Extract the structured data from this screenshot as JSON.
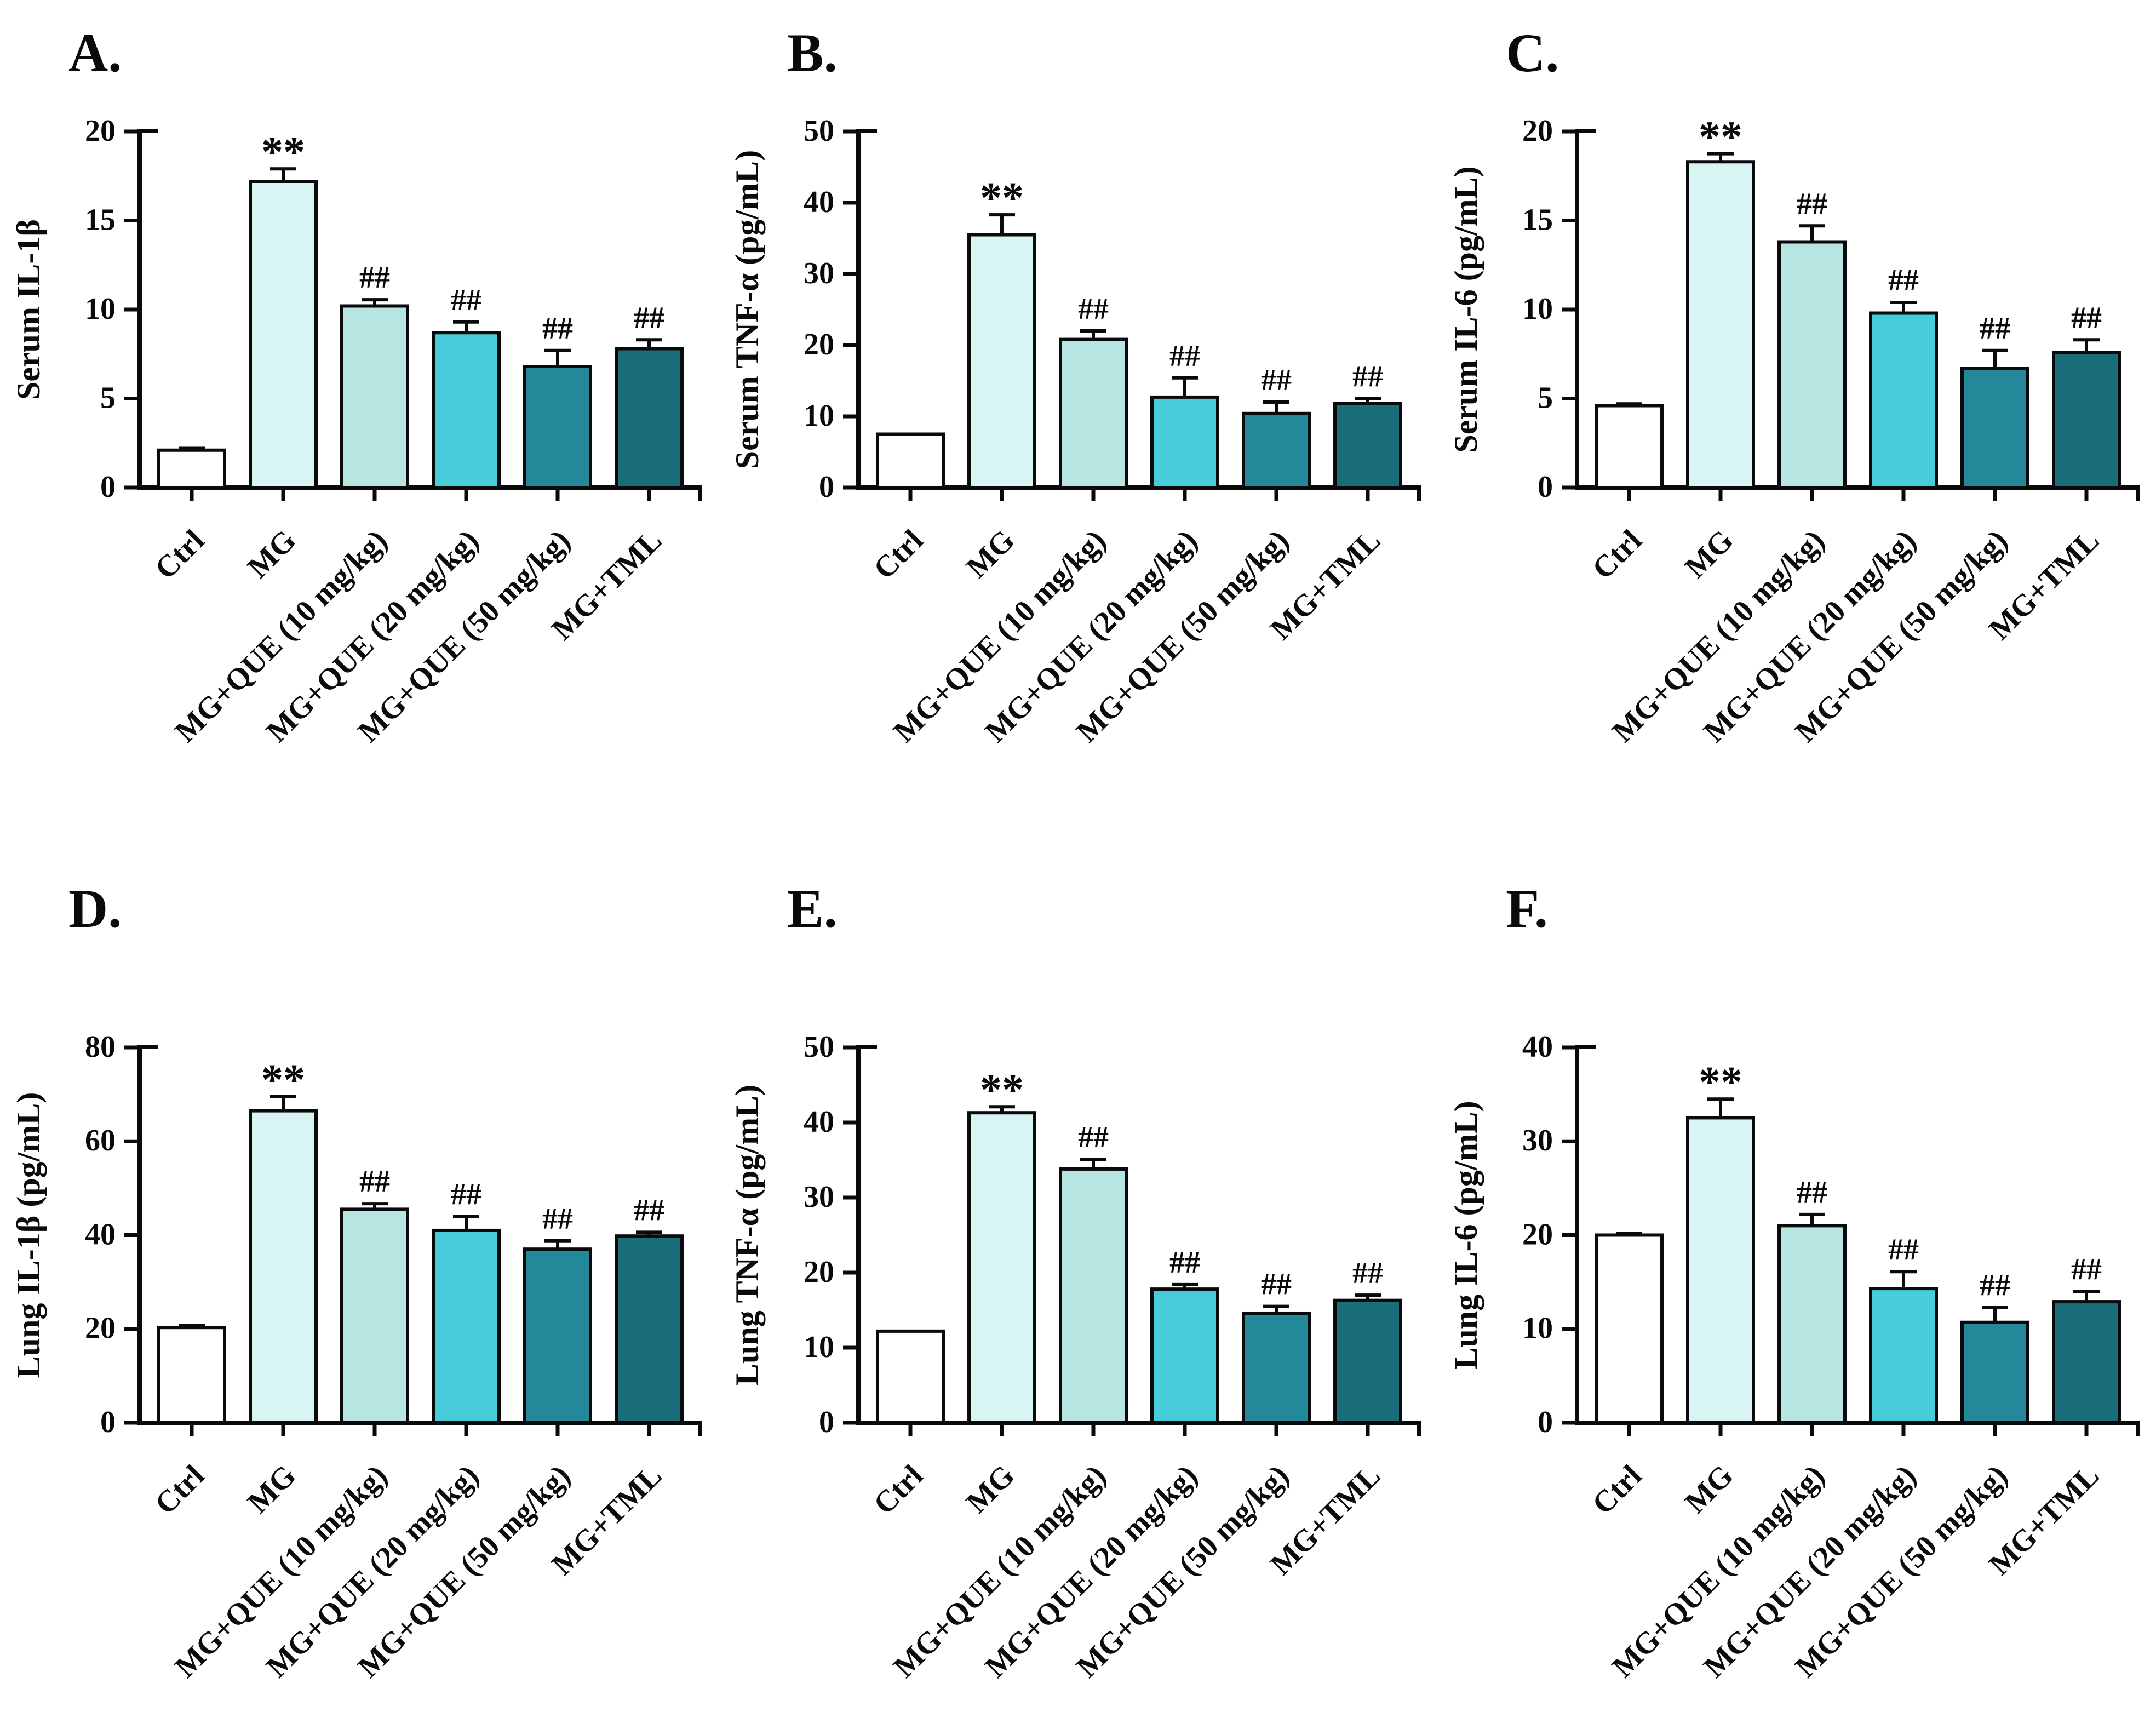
{
  "figure": {
    "description": "Six-panel bar chart figure: effects of QUE doses and TML on serum and lung inflammatory cytokines in MG-treated groups",
    "background_color": "#ffffff",
    "axis_color": "#0a0a0a",
    "bar_outline_color": "#0a0a0a",
    "bar_colors": [
      "#ffffff",
      "#d8f5f4",
      "#b7e6e2",
      "#46cdd9",
      "#23899a",
      "#1a6e7b"
    ],
    "significance_marks": {
      "vs_ctrl": "**",
      "vs_mg": "##"
    }
  },
  "chart_data": [
    {
      "type": "bar",
      "title": "A.",
      "ylabel": "Serum IL-1β",
      "xlabel": "",
      "categories": [
        "Ctrl",
        "MG",
        "MG+QUE (10 mg/kg)",
        "MG+QUE (20 mg/kg)",
        "MG+QUE (50 mg/kg)",
        "MG+TML"
      ],
      "values": [
        2.1,
        17.2,
        10.2,
        8.7,
        6.8,
        7.8
      ],
      "errors": [
        0.1,
        0.7,
        0.35,
        0.6,
        0.9,
        0.5
      ],
      "annotations": [
        "",
        "**",
        "##",
        "##",
        "##",
        "##"
      ],
      "ylim": [
        0,
        20
      ],
      "ytick_step": 5,
      "grid": false,
      "legend": "none"
    },
    {
      "type": "bar",
      "title": "B.",
      "ylabel": "Serum TNF-α (pg/mL)",
      "xlabel": "",
      "categories": [
        "Ctrl",
        "MG",
        "MG+QUE (10 mg/kg)",
        "MG+QUE (20 mg/kg)",
        "MG+QUE (50 mg/kg)",
        "MG+TML"
      ],
      "values": [
        7.5,
        35.5,
        20.8,
        12.7,
        10.4,
        11.8
      ],
      "errors": [
        0,
        2.8,
        1.2,
        2.7,
        1.6,
        0.7
      ],
      "annotations": [
        "",
        "**",
        "##",
        "##",
        "##",
        "##"
      ],
      "ylim": [
        0,
        50
      ],
      "ytick_step": 10,
      "grid": false,
      "legend": "none"
    },
    {
      "type": "bar",
      "title": "C.",
      "ylabel": "Serum IL-6 (pg/mL)",
      "xlabel": "",
      "categories": [
        "Ctrl",
        "MG",
        "MG+QUE (10 mg/kg)",
        "MG+QUE (20 mg/kg)",
        "MG+QUE (50 mg/kg)",
        "MG+TML"
      ],
      "values": [
        4.6,
        18.3,
        13.8,
        9.8,
        6.7,
        7.6
      ],
      "errors": [
        0.1,
        0.45,
        0.9,
        0.6,
        1.0,
        0.7
      ],
      "annotations": [
        "",
        "**",
        "##",
        "##",
        "##",
        "##"
      ],
      "ylim": [
        0,
        20
      ],
      "ytick_step": 5,
      "grid": false,
      "legend": "none"
    },
    {
      "type": "bar",
      "title": "D.",
      "ylabel": "Lung IL-1β (pg/mL)",
      "xlabel": "",
      "categories": [
        "Ctrl",
        "MG",
        "MG+QUE (10 mg/kg)",
        "MG+QUE (20 mg/kg)",
        "MG+QUE (50 mg/kg)",
        "MG+TML"
      ],
      "values": [
        20.3,
        66.5,
        45.5,
        41.0,
        37.0,
        39.8
      ],
      "errors": [
        0.4,
        3.0,
        1.2,
        3.0,
        1.8,
        0.8
      ],
      "annotations": [
        "",
        "**",
        "##",
        "##",
        "##",
        "##"
      ],
      "ylim": [
        0,
        80
      ],
      "ytick_step": 20,
      "grid": false,
      "legend": "none"
    },
    {
      "type": "bar",
      "title": "E.",
      "ylabel": "Lung TNF-α (pg/mL)",
      "xlabel": "",
      "categories": [
        "Ctrl",
        "MG",
        "MG+QUE (10 mg/kg)",
        "MG+QUE (20 mg/kg)",
        "MG+QUE (50 mg/kg)",
        "MG+TML"
      ],
      "values": [
        12.2,
        41.3,
        33.8,
        17.8,
        14.6,
        16.3
      ],
      "errors": [
        0,
        0.8,
        1.3,
        0.6,
        0.9,
        0.7
      ],
      "annotations": [
        "",
        "**",
        "##",
        "##",
        "##",
        "##"
      ],
      "ylim": [
        0,
        50
      ],
      "ytick_step": 10,
      "grid": false,
      "legend": "none"
    },
    {
      "type": "bar",
      "title": "F.",
      "ylabel": "Lung IL-6 (pg/mL)",
      "xlabel": "",
      "categories": [
        "Ctrl",
        "MG",
        "MG+QUE (10 mg/kg)",
        "MG+QUE (20 mg/kg)",
        "MG+QUE (50 mg/kg)",
        "MG+TML"
      ],
      "values": [
        20.0,
        32.5,
        21.0,
        14.3,
        10.7,
        12.9
      ],
      "errors": [
        0.2,
        2.0,
        1.2,
        1.8,
        1.6,
        1.1
      ],
      "annotations": [
        "",
        "**",
        "##",
        "##",
        "##",
        "##"
      ],
      "ylim": [
        0,
        40
      ],
      "ytick_step": 10,
      "grid": false,
      "legend": "none"
    }
  ]
}
